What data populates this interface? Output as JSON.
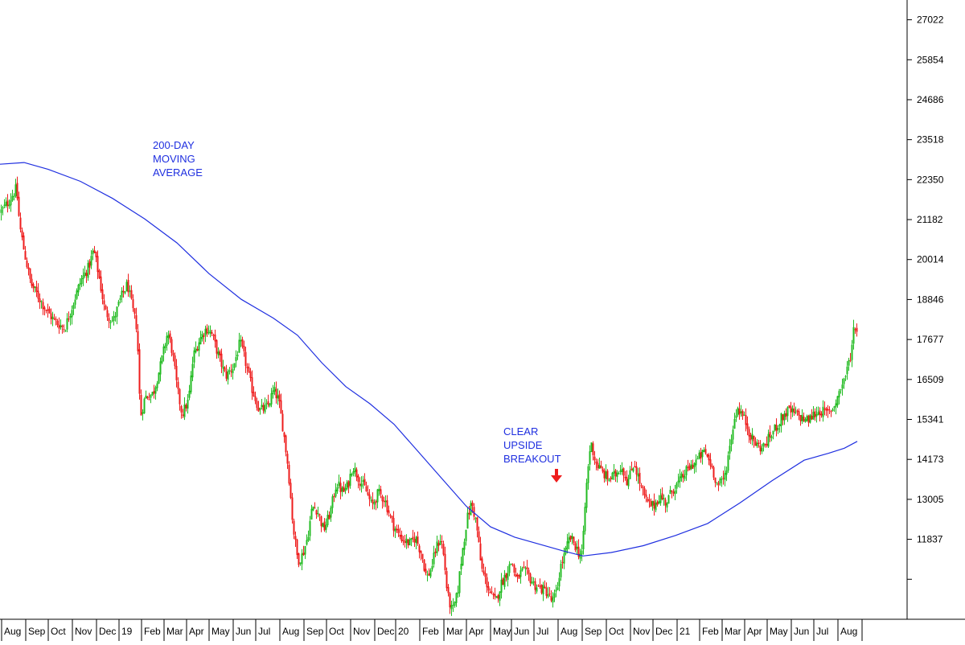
{
  "chart_data": {
    "type": "candlestick",
    "title": "",
    "xlabel": "",
    "ylabel": "",
    "ylim": [
      9500,
      27600
    ],
    "y_ticks": [
      "27022",
      "25854",
      "24686",
      "23518",
      "22350",
      "21182",
      "20014",
      "18846",
      "17677",
      "16509",
      "15341",
      "14173",
      "13005",
      "11837"
    ],
    "x_labels": [
      "Aug",
      "Sep",
      "Oct",
      "Nov",
      "Dec",
      "19",
      "Feb",
      "Mar",
      "Apr",
      "May",
      "Jun",
      "Jul",
      "Aug",
      "Sep",
      "Oct",
      "Nov",
      "Dec",
      "20",
      "Feb",
      "Mar",
      "Apr",
      "May",
      "Jun",
      "Jul",
      "Aug",
      "Sep",
      "Oct",
      "Nov",
      "Dec",
      "21",
      "Feb",
      "Mar",
      "Apr",
      "May",
      "Jun",
      "Jul",
      "Aug"
    ],
    "price_path": [
      [
        0,
        21400
      ],
      [
        10,
        21700
      ],
      [
        20,
        22100
      ],
      [
        24,
        21000
      ],
      [
        30,
        20200
      ],
      [
        38,
        19300
      ],
      [
        48,
        18900
      ],
      [
        58,
        18500
      ],
      [
        68,
        18200
      ],
      [
        80,
        18000
      ],
      [
        90,
        18700
      ],
      [
        100,
        19400
      ],
      [
        110,
        19800
      ],
      [
        116,
        20300
      ],
      [
        122,
        19600
      ],
      [
        130,
        18500
      ],
      [
        140,
        18200
      ],
      [
        150,
        18900
      ],
      [
        158,
        19300
      ],
      [
        164,
        18600
      ],
      [
        170,
        18000
      ],
      [
        174,
        15400
      ],
      [
        180,
        16000
      ],
      [
        190,
        16100
      ],
      [
        200,
        17000
      ],
      [
        208,
        17900
      ],
      [
        214,
        17300
      ],
      [
        220,
        16200
      ],
      [
        226,
        15500
      ],
      [
        234,
        15900
      ],
      [
        240,
        17200
      ],
      [
        248,
        17700
      ],
      [
        256,
        18000
      ],
      [
        262,
        17900
      ],
      [
        270,
        17300
      ],
      [
        280,
        16600
      ],
      [
        290,
        16900
      ],
      [
        298,
        17600
      ],
      [
        304,
        17100
      ],
      [
        312,
        16300
      ],
      [
        322,
        15600
      ],
      [
        332,
        15700
      ],
      [
        340,
        16200
      ],
      [
        346,
        15900
      ],
      [
        352,
        15000
      ],
      [
        358,
        13900
      ],
      [
        364,
        12200
      ],
      [
        370,
        11200
      ],
      [
        376,
        11400
      ],
      [
        382,
        11900
      ],
      [
        388,
        12800
      ],
      [
        394,
        12700
      ],
      [
        402,
        12100
      ],
      [
        410,
        12600
      ],
      [
        418,
        13500
      ],
      [
        426,
        13200
      ],
      [
        432,
        13400
      ],
      [
        438,
        14000
      ],
      [
        446,
        13600
      ],
      [
        454,
        13300
      ],
      [
        462,
        12800
      ],
      [
        470,
        13200
      ],
      [
        478,
        13000
      ],
      [
        486,
        12400
      ],
      [
        494,
        12000
      ],
      [
        502,
        11800
      ],
      [
        510,
        11700
      ],
      [
        516,
        11900
      ],
      [
        524,
        11400
      ],
      [
        530,
        10700
      ],
      [
        536,
        11000
      ],
      [
        542,
        11600
      ],
      [
        548,
        11900
      ],
      [
        552,
        11200
      ],
      [
        556,
        10200
      ],
      [
        562,
        9700
      ],
      [
        568,
        10200
      ],
      [
        574,
        11400
      ],
      [
        580,
        12400
      ],
      [
        586,
        12900
      ],
      [
        592,
        12300
      ],
      [
        598,
        11000
      ],
      [
        604,
        10600
      ],
      [
        610,
        10200
      ],
      [
        616,
        10000
      ],
      [
        622,
        10500
      ],
      [
        628,
        10800
      ],
      [
        636,
        11200
      ],
      [
        642,
        10600
      ],
      [
        648,
        10900
      ],
      [
        656,
        10800
      ],
      [
        664,
        10500
      ],
      [
        672,
        10400
      ],
      [
        680,
        10300
      ],
      [
        686,
        10000
      ],
      [
        692,
        10300
      ],
      [
        696,
        11000
      ],
      [
        702,
        11400
      ],
      [
        708,
        11900
      ],
      [
        714,
        11700
      ],
      [
        720,
        11400
      ],
      [
        724,
        11500
      ],
      [
        728,
        13200
      ],
      [
        734,
        14700
      ],
      [
        740,
        14100
      ],
      [
        748,
        13800
      ],
      [
        756,
        13600
      ],
      [
        764,
        13700
      ],
      [
        772,
        14000
      ],
      [
        780,
        13500
      ],
      [
        788,
        14100
      ],
      [
        796,
        13400
      ],
      [
        804,
        12900
      ],
      [
        812,
        12800
      ],
      [
        820,
        13100
      ],
      [
        828,
        12900
      ],
      [
        836,
        13300
      ],
      [
        844,
        13500
      ],
      [
        852,
        13800
      ],
      [
        860,
        14000
      ],
      [
        868,
        14200
      ],
      [
        876,
        14400
      ],
      [
        884,
        14000
      ],
      [
        892,
        13400
      ],
      [
        900,
        13600
      ],
      [
        906,
        14400
      ],
      [
        910,
        15000
      ],
      [
        916,
        15700
      ],
      [
        922,
        15500
      ],
      [
        928,
        15200
      ],
      [
        934,
        14800
      ],
      [
        940,
        14600
      ],
      [
        948,
        14500
      ],
      [
        956,
        14800
      ],
      [
        964,
        15100
      ],
      [
        972,
        15400
      ],
      [
        980,
        15600
      ],
      [
        988,
        15500
      ],
      [
        996,
        15400
      ],
      [
        1004,
        15300
      ],
      [
        1012,
        15500
      ],
      [
        1020,
        15600
      ],
      [
        1028,
        15500
      ],
      [
        1036,
        15700
      ],
      [
        1044,
        16200
      ],
      [
        1052,
        16700
      ],
      [
        1058,
        17300
      ],
      [
        1062,
        18200
      ],
      [
        1066,
        17800
      ]
    ],
    "series": [
      {
        "name": "200-DAY MOVING AVERAGE",
        "color": "#1f2fe0",
        "points": [
          [
            0,
            22800
          ],
          [
            30,
            22850
          ],
          [
            60,
            22650
          ],
          [
            100,
            22300
          ],
          [
            140,
            21800
          ],
          [
            180,
            21200
          ],
          [
            220,
            20500
          ],
          [
            260,
            19600
          ],
          [
            300,
            18850
          ],
          [
            340,
            18300
          ],
          [
            370,
            17800
          ],
          [
            400,
            17000
          ],
          [
            430,
            16300
          ],
          [
            460,
            15800
          ],
          [
            490,
            15200
          ],
          [
            520,
            14400
          ],
          [
            550,
            13600
          ],
          [
            580,
            12800
          ],
          [
            610,
            12200
          ],
          [
            640,
            11900
          ],
          [
            670,
            11700
          ],
          [
            700,
            11500
          ],
          [
            725,
            11350
          ],
          [
            760,
            11450
          ],
          [
            800,
            11650
          ],
          [
            840,
            11950
          ],
          [
            880,
            12300
          ],
          [
            920,
            12900
          ],
          [
            960,
            13550
          ],
          [
            1000,
            14150
          ],
          [
            1030,
            14350
          ],
          [
            1050,
            14500
          ],
          [
            1066,
            14700
          ]
        ]
      }
    ],
    "up_color": "#22bb22",
    "down_color": "#ee1c1c",
    "annotations": [
      {
        "id": "ma",
        "lines": [
          "200-DAY",
          "MOVING",
          "AVERAGE"
        ],
        "color": "#1f2fe0"
      },
      {
        "id": "breakout",
        "lines": [
          "CLEAR",
          "UPSIDE",
          "BREAKOUT"
        ],
        "color": "#1f2fe0"
      }
    ],
    "marker": {
      "type": "arrow-down",
      "color": "#ee1c1c",
      "x": 692
    },
    "grid": false,
    "legend": "none"
  }
}
